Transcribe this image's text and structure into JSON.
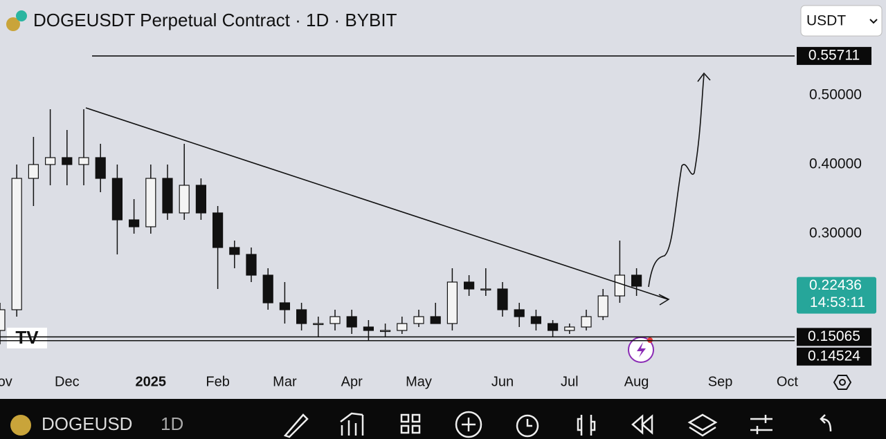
{
  "header": {
    "title": "DOGEUSDT Perpetual Contract · 1D · BYBIT",
    "currency": "USDT"
  },
  "chart_data": {
    "type": "candlestick",
    "categories": [
      "Nov",
      null,
      null,
      null,
      "Dec",
      null,
      null,
      null,
      null,
      "2025",
      null,
      null,
      null,
      "Feb",
      null,
      null,
      null,
      "Mar",
      null,
      null,
      null,
      "Apr",
      null,
      null,
      null,
      "May",
      null,
      null,
      null,
      null,
      "Jun",
      null,
      null,
      null,
      "Jul",
      null,
      null,
      null,
      "Aug",
      null,
      null,
      null,
      null,
      "Sep",
      null,
      null,
      null,
      "Oct"
    ],
    "open": [
      0.16,
      0.19,
      0.38,
      0.4,
      0.41,
      0.4,
      0.41,
      0.38,
      0.32,
      0.31,
      0.38,
      0.33,
      0.37,
      0.33,
      0.28,
      0.27,
      0.24,
      0.2,
      0.19,
      0.17,
      0.17,
      0.18,
      0.165,
      0.16,
      0.16,
      0.17,
      0.18,
      0.17,
      0.23,
      0.22,
      0.22,
      0.19,
      0.18,
      0.17,
      0.16,
      0.165,
      0.18,
      0.21,
      0.24,
      null,
      null,
      null,
      null,
      null,
      null,
      null,
      null,
      null
    ],
    "high": [
      0.2,
      0.4,
      0.44,
      0.48,
      0.45,
      0.48,
      0.43,
      0.4,
      0.35,
      0.4,
      0.4,
      0.43,
      0.38,
      0.34,
      0.29,
      0.28,
      0.25,
      0.23,
      0.2,
      0.18,
      0.19,
      0.19,
      0.175,
      0.17,
      0.18,
      0.19,
      0.2,
      0.25,
      0.24,
      0.25,
      0.23,
      0.2,
      0.19,
      0.175,
      0.17,
      0.19,
      0.22,
      0.29,
      0.25,
      null,
      null,
      null,
      null,
      null,
      null,
      null,
      null,
      null
    ],
    "low": [
      0.14,
      0.18,
      0.34,
      0.37,
      0.37,
      0.37,
      0.36,
      0.27,
      0.3,
      0.3,
      0.32,
      0.32,
      0.32,
      0.22,
      0.25,
      0.23,
      0.19,
      0.17,
      0.16,
      0.15,
      0.16,
      0.155,
      0.145,
      0.15,
      0.155,
      0.165,
      0.17,
      0.16,
      0.21,
      0.21,
      0.18,
      0.165,
      0.16,
      0.15,
      0.155,
      0.16,
      0.175,
      0.2,
      0.21,
      null,
      null,
      null,
      null,
      null,
      null,
      null,
      null,
      null
    ],
    "close": [
      0.19,
      0.38,
      0.4,
      0.41,
      0.4,
      0.41,
      0.38,
      0.32,
      0.31,
      0.38,
      0.33,
      0.37,
      0.33,
      0.28,
      0.27,
      0.24,
      0.2,
      0.19,
      0.17,
      0.17,
      0.18,
      0.165,
      0.16,
      0.16,
      0.17,
      0.18,
      0.17,
      0.23,
      0.22,
      0.22,
      0.19,
      0.18,
      0.17,
      0.16,
      0.165,
      0.18,
      0.21,
      0.24,
      0.224,
      null,
      null,
      null,
      null,
      null,
      null,
      null,
      null,
      null
    ],
    "color": "#111111",
    "ylim": [
      0.108,
      0.588
    ],
    "yticks": [
      {
        "value": 0.3,
        "label": "0.30000"
      },
      {
        "value": 0.4,
        "label": "0.40000"
      },
      {
        "value": 0.5,
        "label": "0.50000"
      }
    ],
    "price_lines": [
      0.55711,
      0.15065,
      0.14524
    ],
    "last_price": 0.22436,
    "last_price_color": "#26a69a",
    "countdown": "14:53:11"
  },
  "toolbar": {
    "symbol": "DOGEUSD",
    "interval": "1D"
  }
}
